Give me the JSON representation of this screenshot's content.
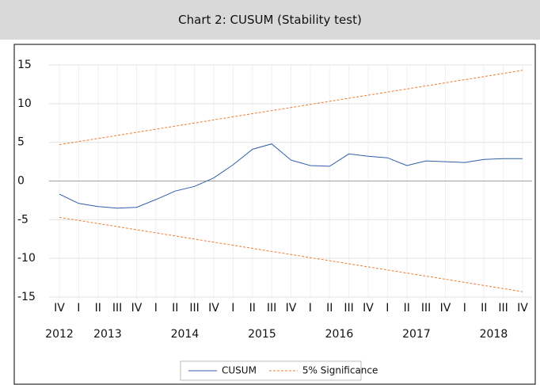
{
  "chart_data": {
    "type": "line",
    "title": "Chart 2: CUSUM (Stability test)",
    "categories": [
      "IV",
      "I",
      "II",
      "III",
      "IV",
      "I",
      "II",
      "III",
      "IV",
      "I",
      "II",
      "III",
      "IV",
      "I",
      "II",
      "III",
      "IV",
      "I",
      "II",
      "III",
      "IV",
      "I",
      "II",
      "III",
      "IV"
    ],
    "years": [
      "2012",
      "2013",
      "2014",
      "2015",
      "2016",
      "2017",
      "2018"
    ],
    "series": [
      {
        "name": "CUSUM",
        "color": "#2f5ea8",
        "values": [
          -1.7,
          -2.9,
          -3.3,
          -3.5,
          -3.4,
          -2.4,
          -1.3,
          -0.7,
          0.4,
          2.1,
          4.1,
          4.8,
          2.7,
          2.0,
          1.9,
          3.5,
          3.2,
          3.0,
          2.0,
          2.6,
          2.5,
          2.4,
          2.8,
          2.9,
          2.9
        ]
      },
      {
        "name": "5% Significance",
        "color": "#ed7d31",
        "dashed": true,
        "values": [
          4.7,
          5.1,
          5.5,
          5.9,
          6.3,
          6.7,
          7.1,
          7.5,
          7.9,
          8.3,
          8.7,
          9.1,
          9.5,
          9.9,
          10.3,
          10.7,
          11.1,
          11.5,
          11.9,
          12.3,
          12.7,
          13.1,
          13.5,
          13.9,
          14.3
        ],
        "lower": [
          -4.7,
          -5.1,
          -5.5,
          -5.9,
          -6.3,
          -6.7,
          -7.1,
          -7.5,
          -7.9,
          -8.3,
          -8.7,
          -9.1,
          -9.5,
          -9.9,
          -10.3,
          -10.7,
          -11.1,
          -11.5,
          -11.9,
          -12.3,
          -12.7,
          -13.1,
          -13.5,
          -13.9,
          -14.3
        ]
      }
    ],
    "ylim": [
      -15,
      15
    ],
    "yticks": [
      -15,
      -10,
      -5,
      0,
      5,
      10,
      15
    ],
    "grid": true
  }
}
